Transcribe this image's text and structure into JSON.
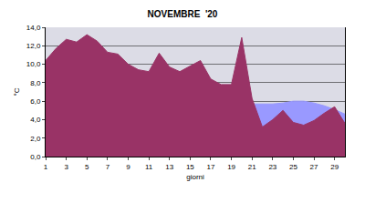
{
  "chart_data": {
    "type": "area",
    "title": "NOVEMBRE  '20",
    "x_label": "giorni",
    "y_label": "°C",
    "x": [
      1,
      2,
      3,
      4,
      5,
      6,
      7,
      8,
      9,
      10,
      11,
      12,
      13,
      14,
      15,
      16,
      17,
      18,
      19,
      20,
      21,
      22,
      23,
      24,
      25,
      26,
      27,
      28,
      29,
      30
    ],
    "series": [
      {
        "color": "#9999ff",
        "values": [
          null,
          null,
          null,
          null,
          null,
          null,
          null,
          null,
          null,
          null,
          null,
          null,
          null,
          null,
          null,
          null,
          null,
          null,
          null,
          null,
          5.7,
          5.7,
          5.7,
          5.8,
          6.0,
          6.0,
          5.8,
          5.5,
          5.1,
          4.6
        ]
      },
      {
        "color": "#993366",
        "values": [
          10.4,
          11.7,
          12.7,
          12.4,
          13.2,
          12.5,
          11.3,
          11.1,
          10.0,
          9.4,
          9.2,
          11.2,
          9.7,
          9.2,
          9.8,
          10.4,
          8.4,
          7.8,
          7.8,
          12.9,
          6.3,
          3.2,
          4.0,
          5.0,
          3.7,
          3.4,
          3.9,
          4.7,
          5.4,
          3.6
        ]
      }
    ],
    "xlim": [
      1,
      30
    ],
    "xticks": [
      1,
      3,
      5,
      7,
      9,
      11,
      13,
      15,
      17,
      19,
      21,
      23,
      25,
      27,
      29
    ],
    "ylim": [
      0,
      14
    ],
    "yticks": [
      {
        "value": 0,
        "label": "0,0"
      },
      {
        "value": 2,
        "label": "2,0"
      },
      {
        "value": 4,
        "label": "4,0"
      },
      {
        "value": 6,
        "label": "6,0"
      },
      {
        "value": 8,
        "label": "8,0"
      },
      {
        "value": 10,
        "label": "10,0"
      },
      {
        "value": 12,
        "label": "12,0"
      },
      {
        "value": 14,
        "label": "14,0"
      }
    ],
    "grid": true
  }
}
